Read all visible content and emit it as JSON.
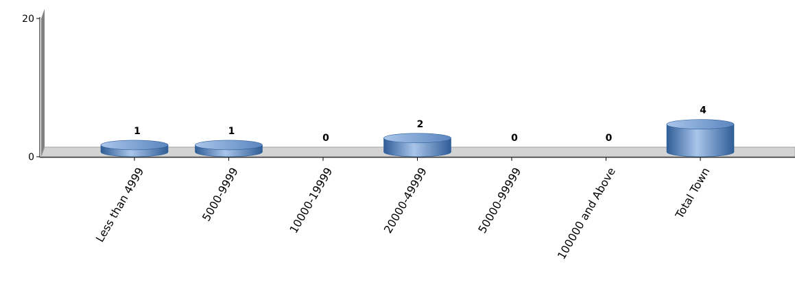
{
  "chart_data": {
    "type": "bar",
    "style": "3d-cylinder",
    "categories": [
      "Less than 4999",
      "5000-9999",
      "10000-19999",
      "20000-49999",
      "50000-99999",
      "100000 and Above",
      "Total Town"
    ],
    "values": [
      1,
      1,
      0,
      2,
      0,
      0,
      4
    ],
    "data_labels": [
      "1",
      "1",
      "0",
      "2",
      "0",
      "0",
      "4"
    ],
    "ylim": [
      0,
      20
    ],
    "y_ticks": [
      "0",
      "20"
    ],
    "grid": false,
    "legend": "none",
    "colors": {
      "bar": "#5b86bf",
      "bar_light": "#a9c5ea",
      "bar_dark": "#2f5d97",
      "floor": "#d3d3d3",
      "wall": "#808080"
    }
  }
}
